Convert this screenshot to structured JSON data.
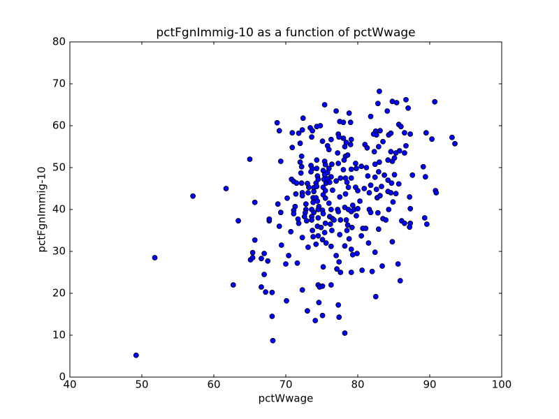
{
  "chart_data": {
    "type": "scatter",
    "title": "pctFgnImmig-10 as a function of pctWwage",
    "x_label": "pctWwage",
    "y_label": "pctFgnImmig-10",
    "color": "#0000ff",
    "edge_color": "#000000",
    "grid": false,
    "xlim": [
      40,
      100
    ],
    "xticks": [
      40,
      50,
      60,
      70,
      80,
      90,
      100
    ],
    "ylim": [
      0,
      80
    ],
    "yticks": [
      0,
      10,
      20,
      30,
      40,
      50,
      60,
      70,
      80
    ],
    "x": [
      49.2,
      51.8,
      57.1,
      61.7,
      62.7,
      63.4,
      65,
      65.7,
      65.7,
      65.4,
      65.1,
      65.4,
      66.6,
      67,
      66.6,
      67,
      67.2,
      67.7,
      67.7,
      67.5,
      68.1,
      68.1,
      68.2,
      68.8,
      69.1,
      69.3,
      68.9,
      69.3,
      69.1,
      69.4,
      70,
      70.1,
      70.2,
      70.4,
      70.7,
      70.9,
      70.9,
      70.8,
      71.1,
      71.5,
      71.3,
      71.1,
      71.1,
      71.4,
      71.6,
      71.7,
      71.8,
      72,
      71.8,
      72.4,
      72.3,
      72,
      72.2,
      72.2,
      72.1,
      72.2,
      72.3,
      72.3,
      72.3,
      72.3,
      72.8,
      72.7,
      72.6,
      72.9,
      72.8,
      73,
      73.2,
      73.1,
      73.1,
      73,
      73.4,
      73.7,
      73.6,
      73.5,
      73.7,
      73.5,
      73.8,
      73.8,
      73.6,
      73.9,
      73.6,
      73.6,
      73.9,
      73.9,
      74.2,
      73.7,
      73.8,
      74.1,
      74.3,
      74.8,
      74.3,
      74.3,
      74.4,
      74.5,
      74.3,
      74.2,
      74.4,
      74.6,
      74.5,
      74.5,
      74.4,
      74.5,
      74.2,
      74.5,
      74.7,
      74.6,
      75.1,
      75.4,
      75.1,
      75.4,
      75.5,
      75.2,
      75.4,
      75.3,
      75.6,
      75.2,
      75.5,
      75.2,
      75.5,
      75.1,
      75.2,
      75.5,
      74.9,
      75.4,
      75.6,
      75.1,
      75.2,
      75.1,
      75.8,
      76.3,
      76,
      76,
      76.4,
      75.8,
      76.3,
      75.8,
      76.1,
      76.5,
      76,
      76.3,
      76.1,
      76.5,
      76.7,
      76.2,
      76.4,
      76.3,
      76.3,
      77,
      77.3,
      77.4,
      77.5,
      77.2,
      77.3,
      77.6,
      77,
      77.5,
      77.2,
      77.3,
      77.6,
      77.5,
      77,
      77.4,
      77.1,
      77.6,
      77.3,
      77.4,
      78,
      78,
      78.4,
      78.2,
      78.3,
      78.1,
      78.6,
      78,
      78.3,
      78.5,
      78.7,
      78.3,
      78.2,
      78.7,
      78.4,
      78.6,
      78.5,
      78.8,
      78.2,
      78.2,
      78.8,
      79,
      79.1,
      79,
      79.1,
      79.1,
      79.3,
      79.1,
      79.5,
      79.2,
      79.1,
      79.3,
      79.1,
      79.7,
      79.8,
      79.7,
      80,
      80,
      79.8,
      79.9,
      80.3,
      80.5,
      80.9,
      80.7,
      80.5,
      80.6,
      81,
      81.2,
      81.3,
      81.4,
      81.1,
      81.5,
      81.8,
      81.8,
      81.6,
      81.6,
      81.8,
      82,
      82.2,
      82.5,
      82.6,
      82.3,
      82.4,
      82.4,
      82.6,
      82.7,
      82.4,
      82.5,
      83,
      82.8,
      83.1,
      82.9,
      83,
      82.9,
      83.3,
      83.1,
      82.8,
      82.9,
      83.4,
      83.5,
      83.7,
      83.5,
      84.1,
      84.3,
      84.2,
      84.2,
      84.2,
      84.3,
      83.9,
      84.8,
      84.6,
      84.6,
      84.8,
      84.7,
      84.6,
      84.9,
      84.8,
      85.4,
      85.3,
      85.1,
      85.1,
      85.3,
      85.6,
      85.7,
      86,
      85.8,
      85.7,
      85.9,
      86.1,
      86.5,
      86.5,
      86.7,
      86.5,
      86.7,
      87,
      87.3,
      87.2,
      87.3,
      87.3,
      87.2,
      87.6,
      89.1,
      89.3,
      89.5,
      89.4,
      89.6,
      90.3,
      90.7,
      90.8,
      90.9,
      93.1,
      93.5
    ],
    "values": [
      5.2,
      28.5,
      43.2,
      45,
      22,
      37.3,
      52,
      41.7,
      32.7,
      29.7,
      28,
      28.5,
      28.3,
      29.5,
      21.5,
      24.5,
      20.3,
      37.3,
      37.7,
      27.7,
      20.2,
      14.5,
      8.7,
      60.7,
      58.8,
      51.5,
      41.3,
      39.3,
      36,
      31.5,
      27,
      18.2,
      42.7,
      29,
      34.7,
      58.3,
      54.8,
      47.2,
      46.7,
      46.3,
      40.7,
      39.8,
      39,
      43.7,
      27.2,
      37.7,
      36.7,
      55.8,
      58.2,
      61.8,
      59,
      51.3,
      50.2,
      52.7,
      48.7,
      46.3,
      44,
      43.3,
      33.3,
      20.8,
      40,
      39.2,
      38.3,
      37.3,
      41.3,
      46.2,
      45.3,
      44,
      31,
      15.8,
      59.5,
      58.8,
      57.3,
      50.5,
      49.7,
      49,
      42.8,
      41.7,
      40,
      39.3,
      38.3,
      37.5,
      45.2,
      44.3,
      46.3,
      35,
      33.5,
      13.5,
      59.8,
      60,
      51.8,
      49.8,
      48,
      47.2,
      45.5,
      42.8,
      42,
      40.7,
      40,
      38,
      36,
      33.7,
      31.7,
      22,
      21.5,
      17.8,
      14.7,
      65,
      56.3,
      51.5,
      50.7,
      49.3,
      48.3,
      47.2,
      46.3,
      45.3,
      44.5,
      43.5,
      42.7,
      39.8,
      39,
      36.7,
      35.7,
      34.5,
      32,
      32.8,
      26.3,
      21.7,
      55.2,
      56.7,
      54.3,
      49.8,
      50.8,
      48.8,
      47.8,
      47.3,
      46.5,
      44.6,
      41.5,
      40,
      38.3,
      37.8,
      37.5,
      36.5,
      35,
      31.2,
      22,
      63.5,
      58,
      57.3,
      61,
      53.5,
      51,
      47.5,
      46.8,
      43,
      40,
      39.5,
      37.5,
      34,
      29,
      27.5,
      25.8,
      25,
      17.2,
      14.3,
      60.8,
      57,
      56,
      55,
      52.7,
      51.8,
      53,
      49.5,
      47.5,
      46.5,
      45.3,
      43.7,
      40.5,
      40,
      37.5,
      36.3,
      35,
      33,
      31.3,
      10.5,
      63,
      60.8,
      56.7,
      55.5,
      49.6,
      47.5,
      41,
      39.5,
      40,
      35.7,
      30.5,
      29.2,
      25,
      51,
      49.8,
      45.3,
      44.5,
      40.2,
      38.5,
      29.5,
      42,
      50.3,
      45,
      35.5,
      33.7,
      25.5,
      55.5,
      50,
      54.7,
      48,
      35.5,
      32,
      62.2,
      45.8,
      44,
      40,
      39.3,
      25.2,
      58,
      58.7,
      57.8,
      53.8,
      50.8,
      47.7,
      44.8,
      42.8,
      29.8,
      19.2,
      68.2,
      65.3,
      58.8,
      55,
      51.3,
      49,
      45.5,
      43.3,
      39.2,
      35.3,
      26.5,
      56.2,
      48.2,
      37.8,
      63.5,
      57.8,
      51.8,
      47,
      44.3,
      40,
      37.5,
      65.8,
      58.2,
      53.8,
      51.5,
      46.3,
      44,
      41.8,
      32.3,
      65.5,
      53.5,
      52.3,
      48.3,
      43.8,
      27,
      60.3,
      59.8,
      54,
      46.1,
      23,
      37.3,
      58.3,
      53.5,
      55.2,
      36.7,
      66.2,
      64.2,
      58,
      43,
      40.2,
      36.7,
      35.8,
      48.2,
      50.2,
      38,
      58.3,
      47.8,
      36.5,
      56.8,
      65.7,
      44.5,
      44,
      57.2,
      55.7
    ]
  }
}
